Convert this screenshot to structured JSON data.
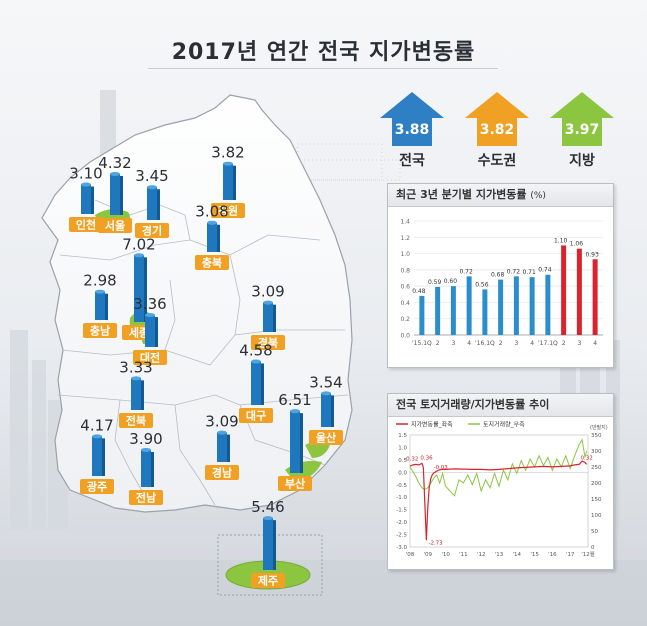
{
  "title": "2017년 연간 전국 지가변동률",
  "summary": [
    {
      "name": "전국",
      "value": "3.88",
      "color": "#2e7fc4"
    },
    {
      "name": "수도권",
      "value": "3.82",
      "color": "#f0a023"
    },
    {
      "name": "지방",
      "value": "3.97",
      "color": "#8cc641"
    }
  ],
  "regions": [
    {
      "name": "인천",
      "value": 3.1,
      "label": "3.10"
    },
    {
      "name": "서울",
      "value": 4.32,
      "label": "4.32"
    },
    {
      "name": "경기",
      "value": 3.45,
      "label": "3.45"
    },
    {
      "name": "강원",
      "value": 3.82,
      "label": "3.82"
    },
    {
      "name": "충북",
      "value": 3.08,
      "label": "3.08"
    },
    {
      "name": "세종",
      "value": 7.02,
      "label": "7.02"
    },
    {
      "name": "충남",
      "value": 2.98,
      "label": "2.98"
    },
    {
      "name": "대전",
      "value": 3.36,
      "label": "3.36"
    },
    {
      "name": "경북",
      "value": 3.09,
      "label": "3.09"
    },
    {
      "name": "전북",
      "value": 3.33,
      "label": "3.33"
    },
    {
      "name": "대구",
      "value": 4.58,
      "label": "4.58"
    },
    {
      "name": "울산",
      "value": 3.54,
      "label": "3.54"
    },
    {
      "name": "광주",
      "value": 4.17,
      "label": "4.17"
    },
    {
      "name": "전남",
      "value": 3.9,
      "label": "3.90"
    },
    {
      "name": "경남",
      "value": 3.09,
      "label": "3.09"
    },
    {
      "name": "부산",
      "value": 6.51,
      "label": "6.51"
    },
    {
      "name": "제주",
      "value": 5.46,
      "label": "5.46"
    }
  ],
  "chart_data": [
    {
      "type": "bar",
      "title": "최근 3년 분기별 지가변동률",
      "unit": "(%)",
      "categories": [
        "'15.1Q",
        "2",
        "3",
        "4",
        "'16.1Q",
        "2",
        "3",
        "4",
        "'17.1Q",
        "2",
        "3",
        "4"
      ],
      "values": [
        0.48,
        0.59,
        0.6,
        0.72,
        0.56,
        0.68,
        0.72,
        0.71,
        0.74,
        1.1,
        1.06,
        0.93
      ],
      "value_labels": [
        "0.48",
        "0.59",
        "0.60",
        "0.72",
        "0.56",
        "0.68",
        "0.72",
        "0.71",
        "0.74",
        "1.10",
        "1.06",
        "0.93"
      ],
      "bar_colors": [
        "#2a8ecb",
        "#2a8ecb",
        "#2a8ecb",
        "#2a8ecb",
        "#2a8ecb",
        "#2a8ecb",
        "#2a8ecb",
        "#2a8ecb",
        "#2a8ecb",
        "#d9232d",
        "#d9232d",
        "#d9232d"
      ],
      "yticks": [
        "0.0",
        "0.2",
        "0.4",
        "0.6",
        "0.8",
        "1.0",
        "1.2",
        "1.4"
      ],
      "ylim": [
        0,
        1.4
      ],
      "grid": true
    },
    {
      "type": "line",
      "title": "전국 토지거래량/지가변동률 추이",
      "legend": [
        "지가변동률_좌축",
        "토지거래량_우측"
      ],
      "right_unit": "(만필지)",
      "x_ticks": [
        "'08",
        "'09",
        "'10",
        "'11",
        "'12",
        "'13",
        "'14",
        "'15",
        "'16",
        "'17",
        "'12월"
      ],
      "y_left_ticks": [
        "1.5",
        "1.0",
        "0.5",
        "0.0",
        "-0.5",
        "-1.0",
        "-1.5",
        "-2.0",
        "-2.5",
        "-3.0"
      ],
      "y_right_ticks": [
        "350",
        "300",
        "250",
        "200",
        "150",
        "100",
        "50",
        "0"
      ],
      "ylim_left": [
        -3.0,
        1.5
      ],
      "ylim_right": [
        0,
        350
      ],
      "annotations": [
        "0.32",
        "0.36",
        "-2.73",
        "-0.03",
        "0.32"
      ],
      "series": [
        {
          "name": "지가변동률_좌축",
          "color": "#d9232d",
          "x": [
            2008.0,
            2008.17,
            2008.33,
            2008.5,
            2008.67,
            2008.75,
            2008.83,
            2008.92,
            2009.0,
            2009.08,
            2009.17,
            2009.25,
            2009.33,
            2009.5,
            2009.67,
            2009.83,
            2010.0,
            2010.5,
            2011.0,
            2011.5,
            2012.0,
            2012.5,
            2013.0,
            2013.5,
            2014.0,
            2014.5,
            2015.0,
            2015.5,
            2016.0,
            2016.5,
            2017.0,
            2017.25,
            2017.5,
            2017.67,
            2017.83,
            2017.92
          ],
          "y": [
            0.25,
            0.3,
            0.32,
            0.3,
            0.36,
            0.2,
            -1.2,
            -2.73,
            -1.4,
            -0.6,
            -0.25,
            -0.1,
            -0.03,
            0.05,
            0.1,
            0.12,
            0.12,
            0.14,
            0.13,
            0.12,
            0.12,
            0.1,
            0.12,
            0.15,
            0.18,
            0.2,
            0.22,
            0.24,
            0.22,
            0.24,
            0.26,
            0.3,
            0.32,
            0.45,
            0.4,
            0.32
          ]
        },
        {
          "name": "토지거래량_우측",
          "color": "#8cc641",
          "x": [
            2008.0,
            2008.17,
            2008.33,
            2008.5,
            2008.67,
            2008.83,
            2009.0,
            2009.17,
            2009.33,
            2009.5,
            2009.67,
            2009.83,
            2010.0,
            2010.25,
            2010.5,
            2010.75,
            2011.0,
            2011.25,
            2011.5,
            2011.75,
            2012.0,
            2012.25,
            2012.5,
            2012.75,
            2013.0,
            2013.25,
            2013.5,
            2013.75,
            2014.0,
            2014.25,
            2014.5,
            2014.75,
            2015.0,
            2015.25,
            2015.5,
            2015.75,
            2016.0,
            2016.25,
            2016.5,
            2016.75,
            2017.0,
            2017.25,
            2017.5,
            2017.67,
            2017.83,
            2017.92
          ],
          "y": [
            250,
            235,
            220,
            200,
            185,
            180,
            185,
            200,
            215,
            225,
            200,
            230,
            190,
            175,
            160,
            210,
            200,
            225,
            195,
            230,
            175,
            210,
            185,
            230,
            190,
            240,
            210,
            260,
            230,
            270,
            240,
            275,
            250,
            285,
            255,
            280,
            240,
            275,
            250,
            285,
            245,
            285,
            320,
            335,
            280,
            300
          ]
        }
      ]
    }
  ]
}
